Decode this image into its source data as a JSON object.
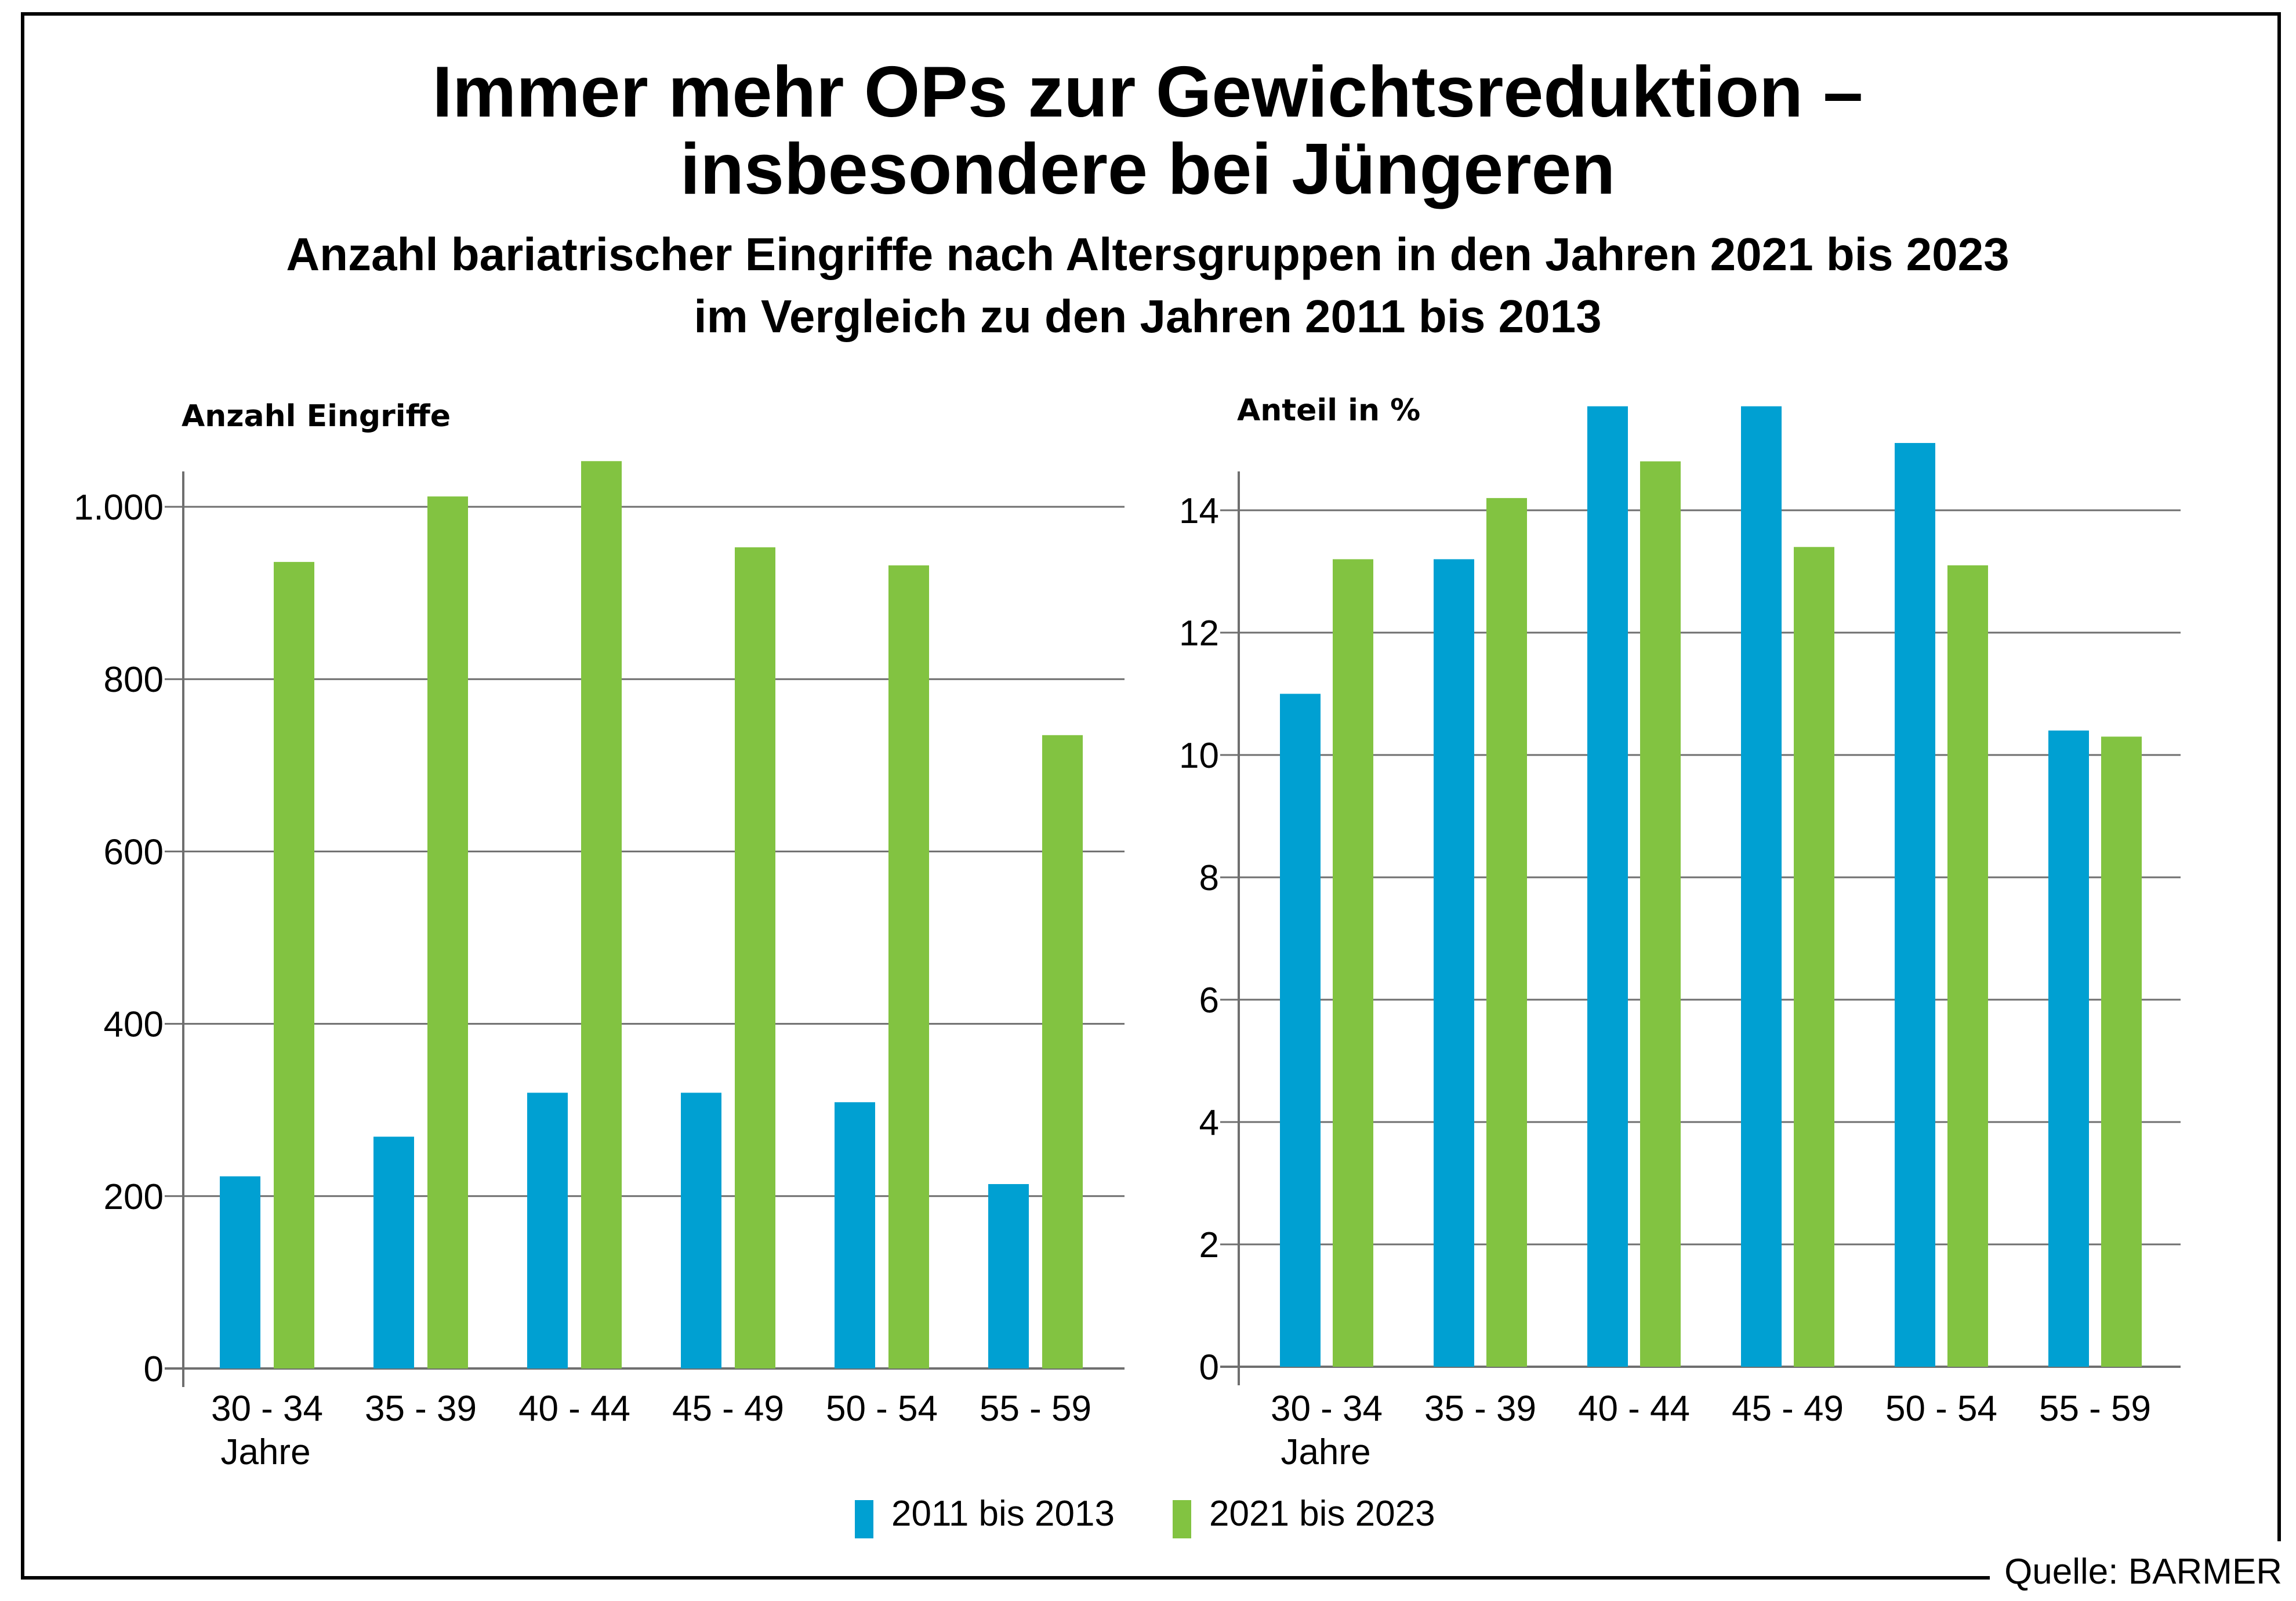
{
  "title": {
    "line1": "Immer mehr OPs zur Gewichtsreduktion –",
    "line2": "insbesondere bei Jüngeren"
  },
  "subtitle": {
    "line1": "Anzahl bariatrischer Eingriffe nach Altersgruppen in den Jahren 2021 bis 2023",
    "line2": "im Vergleich zu den Jahren 2011 bis 2013"
  },
  "colors": {
    "series_2011_2013": "#00a0d2",
    "series_2021_2023": "#82c341",
    "grid": "#6f6f6f"
  },
  "legend": {
    "items": [
      {
        "label": "2011 bis 2013",
        "color": "#00a0d2"
      },
      {
        "label": "2021 bis 2023",
        "color": "#82c341"
      }
    ],
    "placement": "bottom-center"
  },
  "source": "Quelle: BARMER",
  "chart_data": [
    {
      "type": "bar",
      "ylabel": "Anzahl Eingriffe",
      "xlabel_suffix": "Jahre",
      "categories": [
        "30 - 34",
        "35 - 39",
        "40 - 44",
        "45 - 49",
        "50 - 54",
        "55 - 59"
      ],
      "ylim": [
        0,
        1000
      ],
      "yticks": [
        0,
        200,
        400,
        600,
        800,
        1000
      ],
      "ytick_labels": [
        "0",
        "200",
        "400",
        "600",
        "800",
        "1.000"
      ],
      "grid": true,
      "series": [
        {
          "name": "2011 bis 2013",
          "values": [
            223,
            269,
            320,
            320,
            309,
            214
          ]
        },
        {
          "name": "2021 bis 2023",
          "values": [
            936,
            1012,
            1053,
            953,
            932,
            735
          ]
        }
      ]
    },
    {
      "type": "bar",
      "ylabel": "Anteil in %",
      "xlabel_suffix": "Jahre",
      "categories": [
        "30 - 34",
        "35 - 39",
        "40 - 44",
        "45 - 49",
        "50 - 54",
        "55 - 59"
      ],
      "ylim": [
        0,
        14
      ],
      "yticks": [
        0,
        2,
        4,
        6,
        8,
        10,
        12,
        14
      ],
      "ytick_labels": [
        "0",
        "2",
        "4",
        "6",
        "8",
        "10",
        "12",
        "14"
      ],
      "grid": true,
      "series": [
        {
          "name": "2011 bis 2013",
          "values": [
            11.0,
            13.2,
            15.7,
            15.7,
            15.1,
            10.4
          ]
        },
        {
          "name": "2021 bis 2023",
          "values": [
            13.2,
            14.2,
            14.8,
            13.4,
            13.1,
            10.3
          ]
        }
      ]
    }
  ]
}
